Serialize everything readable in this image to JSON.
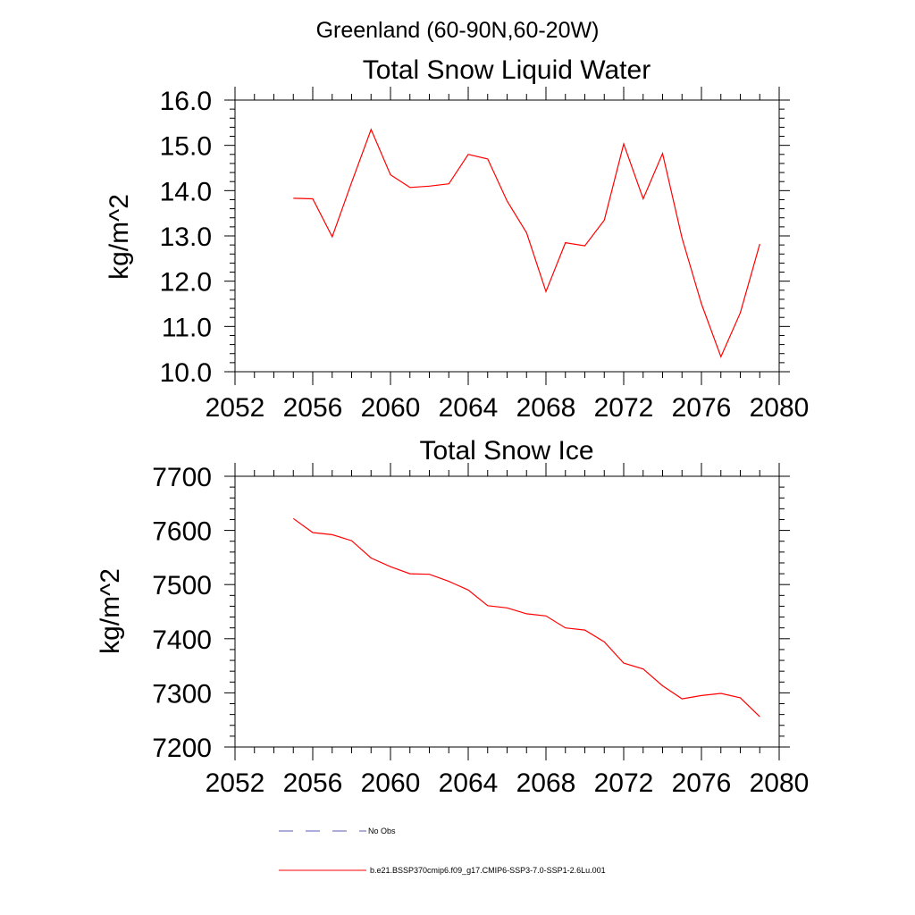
{
  "suptitle": "Greenland (60-90N,60-20W)",
  "colors": {
    "model": "#ff0000",
    "obs": "#5b5bb5",
    "axis": "#000000"
  },
  "legend": {
    "entries": [
      {
        "label": "No Obs",
        "style": "dashed",
        "color": "#5b5bb5"
      },
      {
        "label": "b.e21.BSSP370cmip6.f09_g17.CMIP6-SSP3-7.0-SSP1-2.6Lu.001",
        "style": "solid",
        "color": "#ff0000"
      }
    ]
  },
  "chart_data": [
    {
      "type": "line",
      "title": "Total Snow Liquid Water",
      "xlabel": "",
      "ylabel": "kg/m^2",
      "xlim": [
        2052,
        2080
      ],
      "ylim": [
        10.0,
        16.0
      ],
      "xticks": [
        "2052",
        "2056",
        "2060",
        "2064",
        "2068",
        "2072",
        "2076",
        "2080"
      ],
      "yticks": [
        "10.0",
        "11.0",
        "12.0",
        "13.0",
        "14.0",
        "15.0",
        "16.0"
      ],
      "grid": false,
      "x": [
        2055,
        2056,
        2057,
        2058,
        2059,
        2060,
        2061,
        2062,
        2063,
        2064,
        2065,
        2066,
        2067,
        2068,
        2069,
        2070,
        2071,
        2072,
        2073,
        2074,
        2075,
        2076,
        2077,
        2078,
        2079
      ],
      "series": [
        {
          "values": [
            13.83,
            13.82,
            12.98,
            14.18,
            15.35,
            14.35,
            14.07,
            14.1,
            14.15,
            14.8,
            14.7,
            13.77,
            13.07,
            11.77,
            12.85,
            12.78,
            13.35,
            15.03,
            13.82,
            14.82,
            12.95,
            11.5,
            10.33,
            11.3,
            12.82
          ]
        }
      ]
    },
    {
      "type": "line",
      "title": "Total Snow Ice",
      "xlabel": "",
      "ylabel": "kg/m^2",
      "xlim": [
        2052,
        2080
      ],
      "ylim": [
        7200,
        7700
      ],
      "xticks": [
        "2052",
        "2056",
        "2060",
        "2064",
        "2068",
        "2072",
        "2076",
        "2080"
      ],
      "yticks": [
        "7200",
        "7300",
        "7400",
        "7500",
        "7600",
        "7700"
      ],
      "grid": false,
      "x": [
        2055,
        2056,
        2057,
        2058,
        2059,
        2060,
        2061,
        2062,
        2063,
        2064,
        2065,
        2066,
        2067,
        2068,
        2069,
        2070,
        2071,
        2072,
        2073,
        2074,
        2075,
        2076,
        2077,
        2078,
        2079
      ],
      "series": [
        {
          "values": [
            7622,
            7596,
            7592,
            7581,
            7549,
            7533,
            7520,
            7519,
            7506,
            7490,
            7461,
            7457,
            7446,
            7442,
            7420,
            7416,
            7394,
            7355,
            7344,
            7313,
            7289,
            7295,
            7299,
            7291,
            7256
          ]
        }
      ]
    }
  ]
}
